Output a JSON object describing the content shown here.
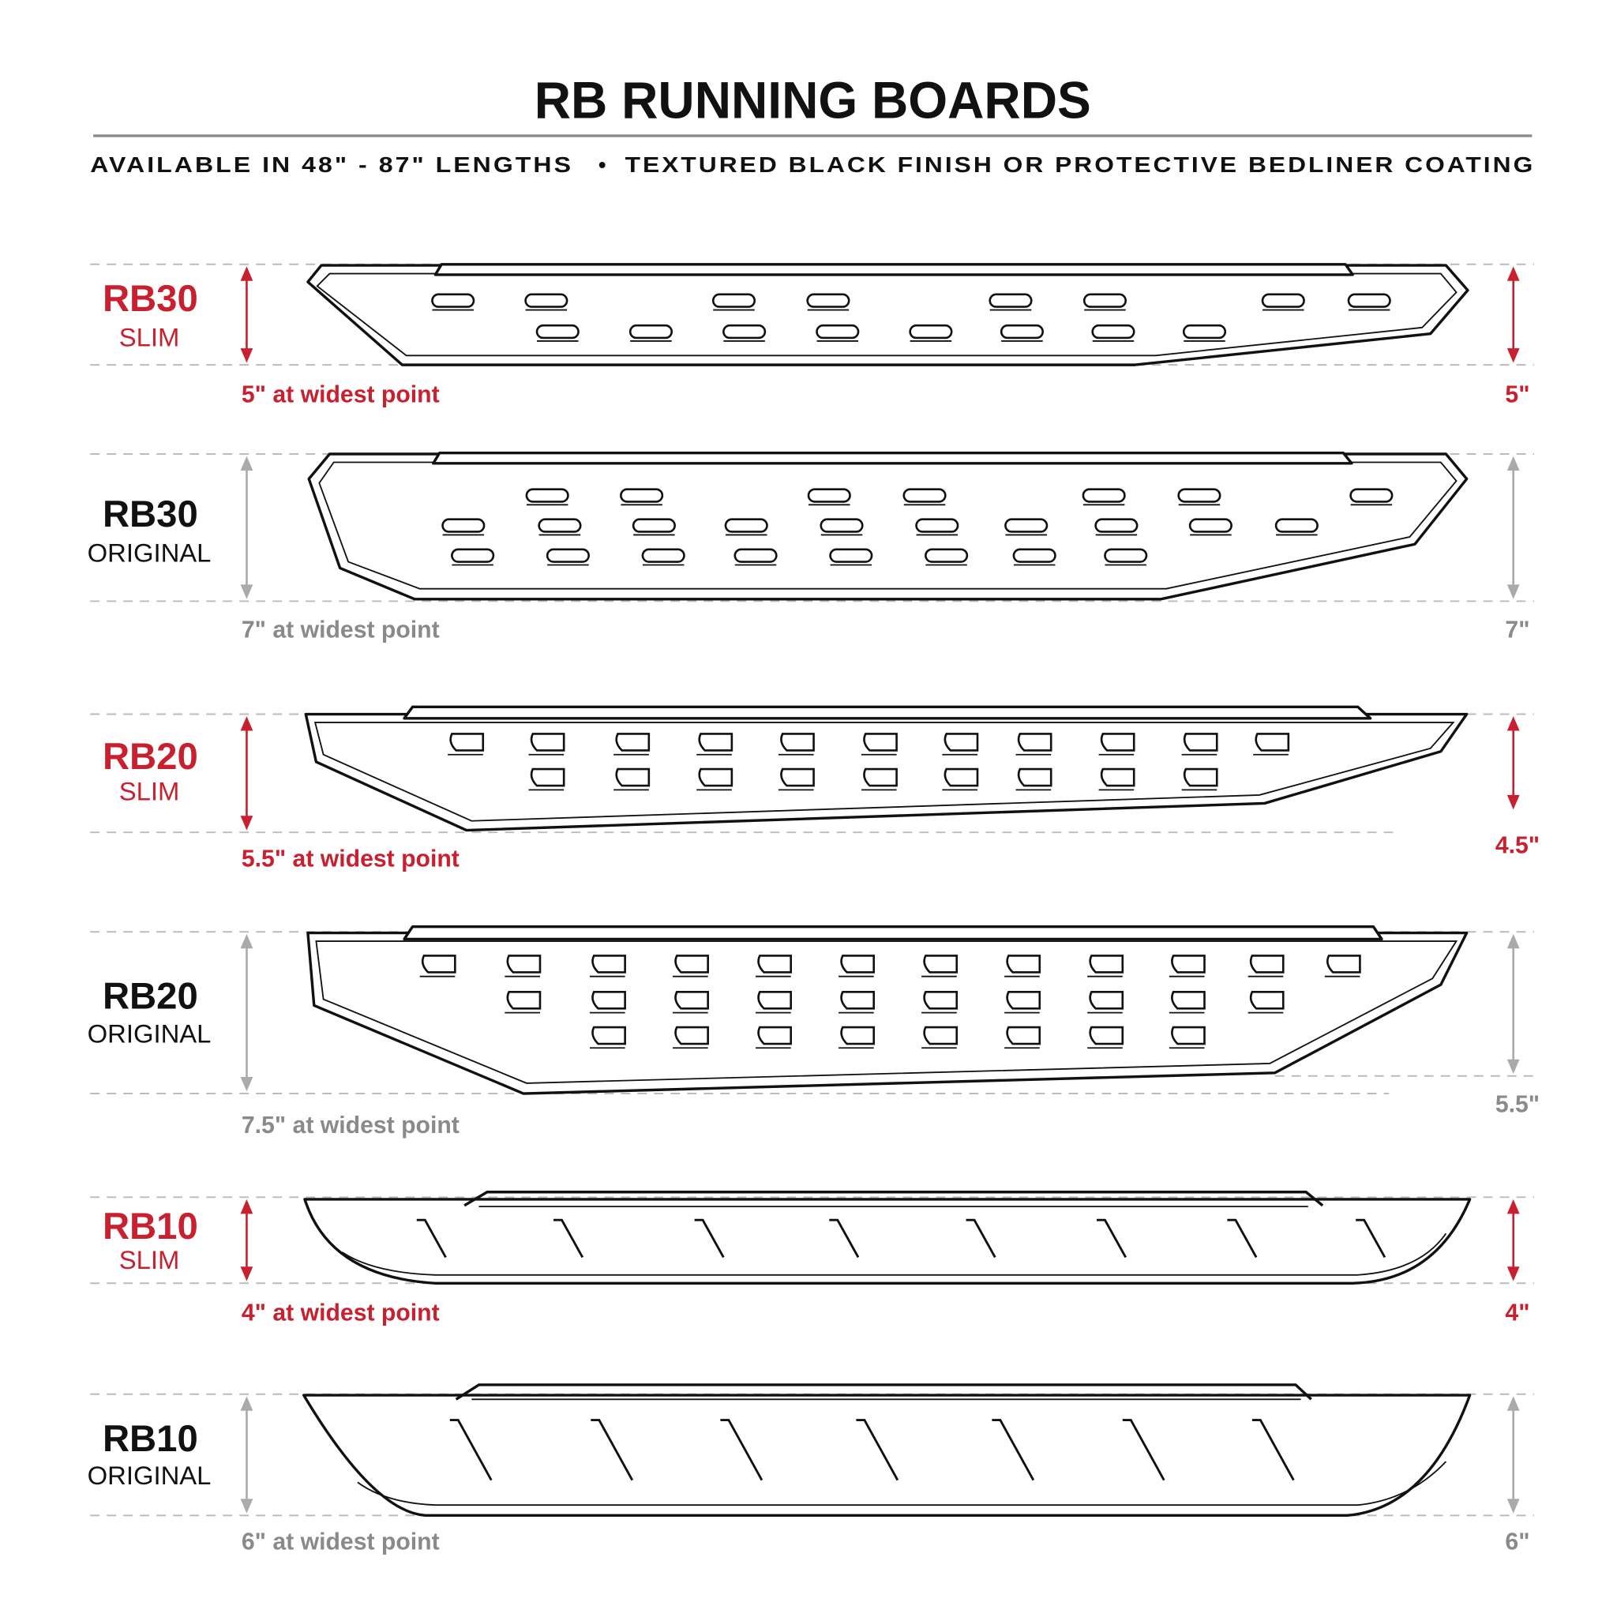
{
  "header": {
    "title": "RB RUNNING BOARDS",
    "subtitle_left": "AVAILABLE IN 48\" - 87\" LENGTHS",
    "bullet": "•",
    "subtitle_right": "TEXTURED BLACK FINISH OR PROTECTIVE BEDLINER COATING"
  },
  "colors": {
    "accent": "#c8202f",
    "muted": "#8a8a8a",
    "ink": "#111111"
  },
  "boards": [
    {
      "model": "RB30",
      "variant": "SLIM",
      "caption": "5\" at widest point",
      "right_measure": "5\"",
      "highlight": true
    },
    {
      "model": "RB30",
      "variant": "ORIGINAL",
      "caption": "7\" at widest point",
      "right_measure": "7\"",
      "highlight": false
    },
    {
      "model": "RB20",
      "variant": "SLIM",
      "caption": "5.5\" at widest point",
      "right_measure": "4.5\"",
      "highlight": true
    },
    {
      "model": "RB20",
      "variant": "ORIGINAL",
      "caption": "7.5\" at widest point",
      "right_measure": "5.5\"",
      "highlight": false
    },
    {
      "model": "RB10",
      "variant": "SLIM",
      "caption": "4\" at widest point",
      "right_measure": "4\"",
      "highlight": true
    },
    {
      "model": "RB10",
      "variant": "ORIGINAL",
      "caption": "6\" at widest point",
      "right_measure": "6\"",
      "highlight": false
    }
  ]
}
